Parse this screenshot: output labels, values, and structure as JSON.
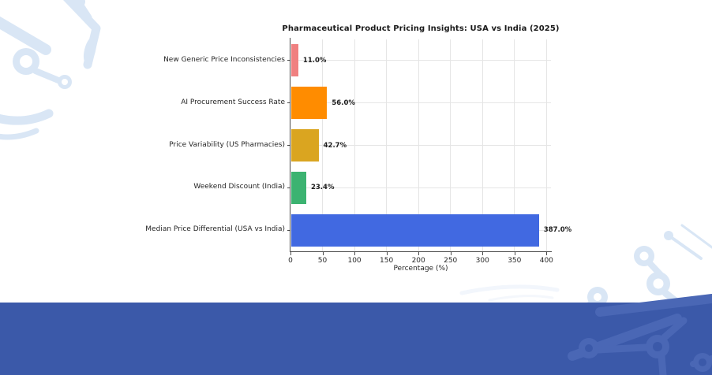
{
  "chart_data": {
    "type": "bar",
    "orientation": "horizontal",
    "title": "Pharmaceutical Product Pricing Insights: USA vs India (2025)",
    "xlabel": "Percentage (%)",
    "ylabel": "",
    "categories": [
      "New Generic Price Inconsistencies",
      "AI Procurement Success Rate",
      "Price Variability (US Pharmacies)",
      "Weekend Discount (India)",
      "Median Price Differential (USA vs India)"
    ],
    "values": [
      11.0,
      56.0,
      42.7,
      23.4,
      387.0
    ],
    "value_labels": [
      "11.0%",
      "56.0%",
      "42.7%",
      "23.4%",
      "387.0%"
    ],
    "bar_colors": [
      "#F08080",
      "#FF8C00",
      "#DAA520",
      "#3CB371",
      "#4169E1"
    ],
    "xticks": [
      0,
      50,
      100,
      150,
      200,
      250,
      300,
      350,
      400
    ],
    "xlim": [
      0,
      407
    ],
    "grid": true,
    "legend": null
  },
  "decor": {
    "band_color": "#3B59A9",
    "trace_light": "#D9E6F5",
    "trace_on_band": "#4A67B5",
    "hole_color": "#FFFFFF"
  },
  "style_colors": {
    "gridline": "#E5E5E5",
    "axis_spine": "#4a4a4a",
    "tick_text": "#262626",
    "value_text": "#1c1c1c"
  }
}
